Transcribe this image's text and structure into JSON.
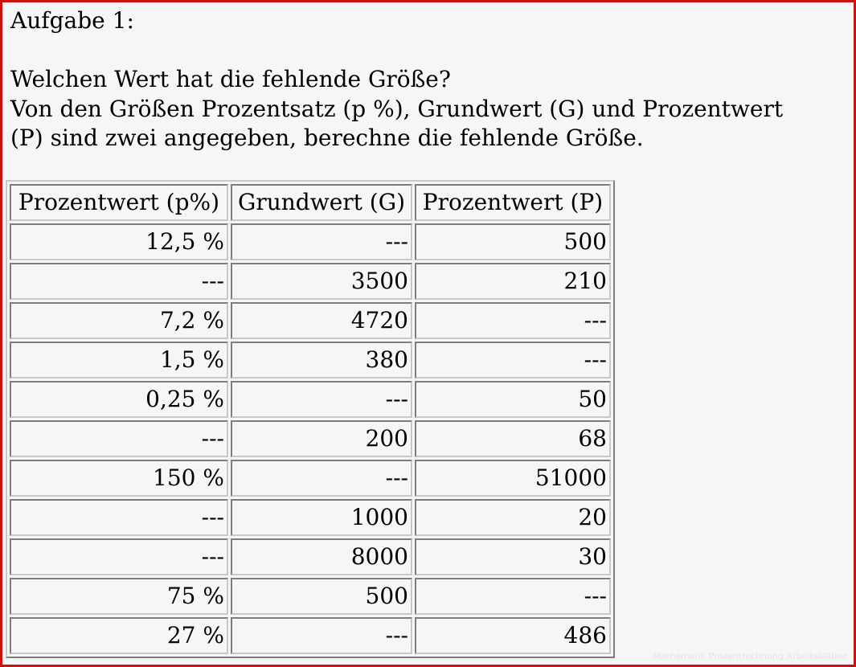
{
  "exercise": {
    "title": "Aufgabe 1:",
    "question": "Welchen Wert hat die fehlende Größe?",
    "instruction_line1": "Von den Größen Prozentsatz (p %), Grundwert (G) und Prozentwert",
    "instruction_line2": "(P) sind zwei angegeben, berechne die fehlende Größe."
  },
  "table": {
    "headers": [
      "Prozentwert (p%)",
      "Grundwert (G)",
      "Prozentwert (P)"
    ],
    "rows": [
      [
        "12,5 %",
        "---",
        "500"
      ],
      [
        "---",
        "3500",
        "210"
      ],
      [
        "7,2 %",
        "4720",
        "---"
      ],
      [
        "1,5 %",
        "380",
        "---"
      ],
      [
        "0,25 %",
        "---",
        "50"
      ],
      [
        "---",
        "200",
        "68"
      ],
      [
        "150 %",
        "---",
        "51000"
      ],
      [
        "---",
        "1000",
        "20"
      ],
      [
        "---",
        "8000",
        "30"
      ],
      [
        "75 %",
        "500",
        "---"
      ],
      [
        "27 %",
        "---",
        "486"
      ]
    ]
  },
  "watermark": "Mathematik Prozentrechnung Arbeitsblätter",
  "colors": {
    "frame_border": "#cc1111",
    "background": "#f6f6f6",
    "text": "#000000"
  }
}
